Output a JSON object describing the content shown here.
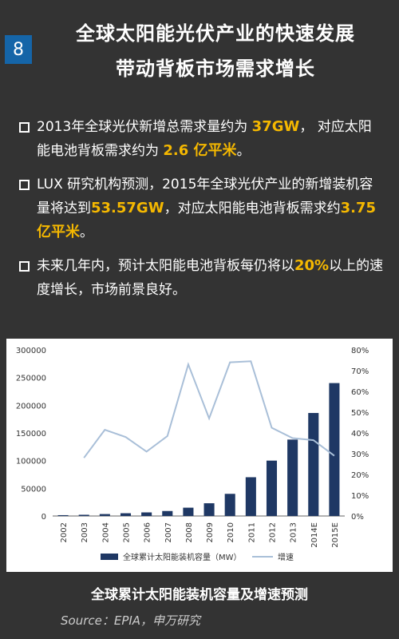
{
  "badge": "8",
  "title_line1": "全球太阳能光伏产业的快速发展",
  "title_line2": "带动背板市场需求增长",
  "bullets": [
    {
      "pre": "2013年全球光伏新增总需求量约为 ",
      "h1": "37GW",
      "mid": "， 对应太阳能电池背板需求约为 ",
      "h2": "2.6 亿平米",
      "post": "。"
    },
    {
      "pre": "LUX 研究机构预测，2015年全球光伏产业的新增装机容量将达到",
      "h1": "53.57GW",
      "mid": "，对应太阳能电池背板需求约",
      "h2": "3.75亿平米",
      "post": "。"
    },
    {
      "pre": "未来几年内，预计太阳能电池背板每仍将以",
      "h1": "20%",
      "mid": "以上的速度增长，市场前景良好。",
      "h2": "",
      "post": ""
    }
  ],
  "chart_data": {
    "type": "bar",
    "categories": [
      "2002",
      "2003",
      "2004",
      "2005",
      "2006",
      "2007",
      "2008",
      "2009",
      "2010",
      "2011",
      "2012",
      "2013",
      "2014E",
      "2015E"
    ],
    "series": [
      {
        "name": "全球累计太阳能装机容量（MW）",
        "type": "bar",
        "axis": "left",
        "values": [
          1500,
          2200,
          3500,
          5000,
          6500,
          9000,
          15000,
          23000,
          40000,
          70000,
          100000,
          138000,
          186000,
          240000
        ]
      },
      {
        "name": "增速",
        "type": "line",
        "axis": "right",
        "values": [
          null,
          0.28,
          0.415,
          0.38,
          0.31,
          0.385,
          0.73,
          0.47,
          0.74,
          0.745,
          0.425,
          0.375,
          0.365,
          0.29
        ]
      }
    ],
    "y_left": {
      "min": 0,
      "max": 300000,
      "ticks": [
        "0",
        "50000",
        "100000",
        "150000",
        "200000",
        "250000",
        "300000"
      ]
    },
    "y_right": {
      "min": 0,
      "max": 0.8,
      "ticks": [
        "0%",
        "10%",
        "20%",
        "30%",
        "40%",
        "50%",
        "60%",
        "70%",
        "80%"
      ]
    },
    "colors": {
      "bar": "#1f3864",
      "line": "#a9bfd8"
    },
    "legend_position": "bottom",
    "caption": "全球累计太阳能装机容量及增速预测"
  },
  "source": "Source：EPIA，申万研究"
}
